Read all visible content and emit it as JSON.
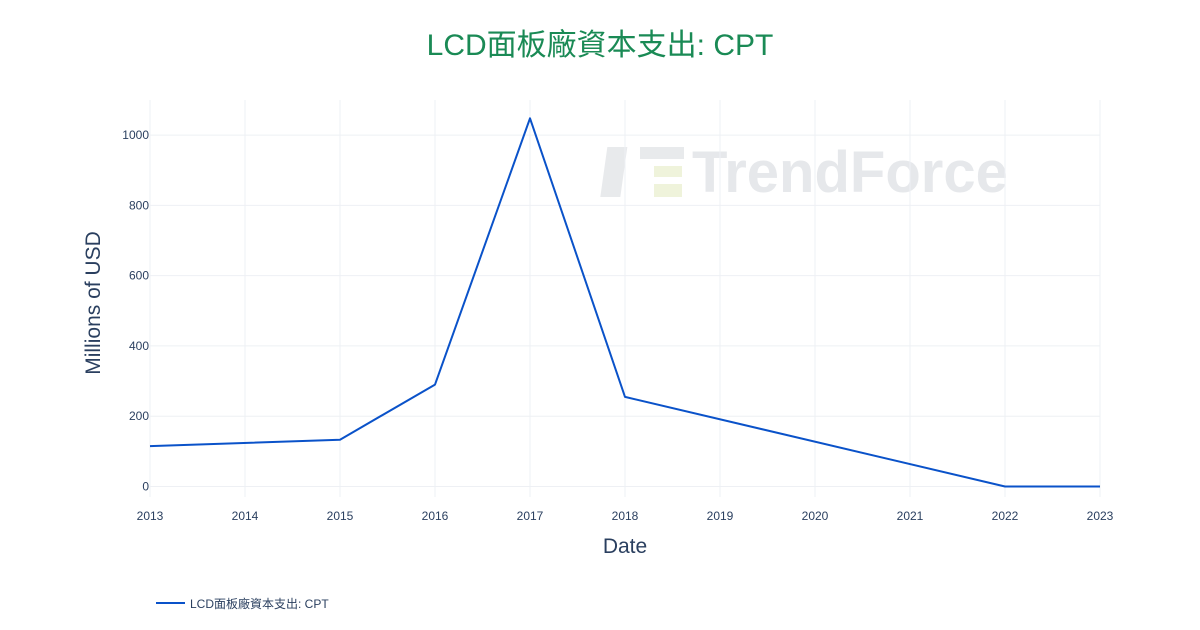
{
  "chart_data": {
    "type": "line",
    "title": "LCD面板廠資本支出: CPT",
    "xlabel": "Date",
    "ylabel": "Millions of USD",
    "x": [
      2013,
      2015,
      2016,
      2017,
      2018,
      2022,
      2023
    ],
    "xticks": [
      2013,
      2014,
      2015,
      2016,
      2017,
      2018,
      2019,
      2020,
      2021,
      2022,
      2023
    ],
    "xlim": [
      2013,
      2023
    ],
    "yticks": [
      0,
      200,
      400,
      600,
      800,
      1000
    ],
    "ylim": [
      -30,
      1100
    ],
    "series": [
      {
        "name": "LCD面板廠資本支出: CPT",
        "values": [
          115,
          133,
          290,
          1048,
          255,
          0,
          0
        ]
      }
    ],
    "grid": true,
    "legend_position": "bottom-left",
    "colors": {
      "line": "#0a52c9",
      "title": "#1a8a55",
      "grid": "#eef0f4",
      "text": "#2a3f5f"
    }
  },
  "watermark": {
    "text": "TrendForce",
    "icon_name": "trendforce-logo-icon"
  }
}
